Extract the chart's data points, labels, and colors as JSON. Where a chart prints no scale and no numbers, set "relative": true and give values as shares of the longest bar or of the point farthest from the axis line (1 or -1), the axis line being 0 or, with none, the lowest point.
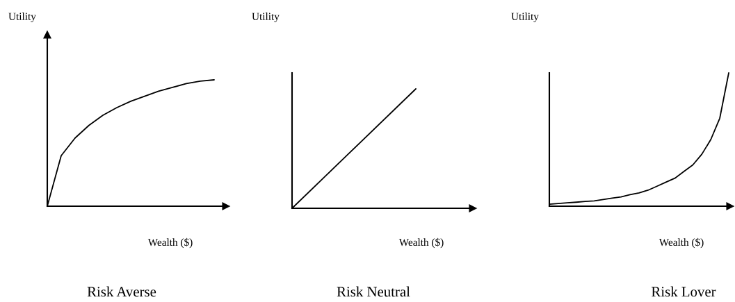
{
  "chart_data": [
    {
      "type": "line",
      "relative": true,
      "title": "Risk Averse",
      "xlabel": "Wealth ($)",
      "ylabel": "Utility",
      "color": "#000000",
      "categories": [
        null,
        null,
        null,
        null,
        null,
        null,
        null,
        null,
        null,
        null,
        null,
        null,
        null
      ],
      "values": [
        0,
        0.4,
        0.54,
        0.64,
        0.72,
        0.78,
        0.83,
        0.87,
        0.91,
        0.94,
        0.97,
        0.99,
        1
      ]
    },
    {
      "type": "line",
      "relative": true,
      "title": "Risk Neutral",
      "xlabel": "Wealth ($)",
      "ylabel": "Utility",
      "color": "#000000",
      "categories": [
        null,
        null
      ],
      "values": [
        0,
        1
      ]
    },
    {
      "type": "line",
      "relative": true,
      "title": "Risk Lover",
      "xlabel": "Wealth ($)",
      "ylabel": "Utility",
      "color": "#000000",
      "categories": [
        null,
        null,
        null,
        null,
        null,
        null,
        null,
        null,
        null,
        null,
        null,
        null,
        null,
        null,
        null,
        null,
        null,
        null,
        null,
        null,
        null
      ],
      "values": [
        0.015,
        0.02,
        0.025,
        0.03,
        0.036,
        0.04,
        0.05,
        0.06,
        0.07,
        0.086,
        0.1,
        0.12,
        0.15,
        0.18,
        0.21,
        0.26,
        0.31,
        0.39,
        0.5,
        0.66,
        1
      ]
    }
  ]
}
